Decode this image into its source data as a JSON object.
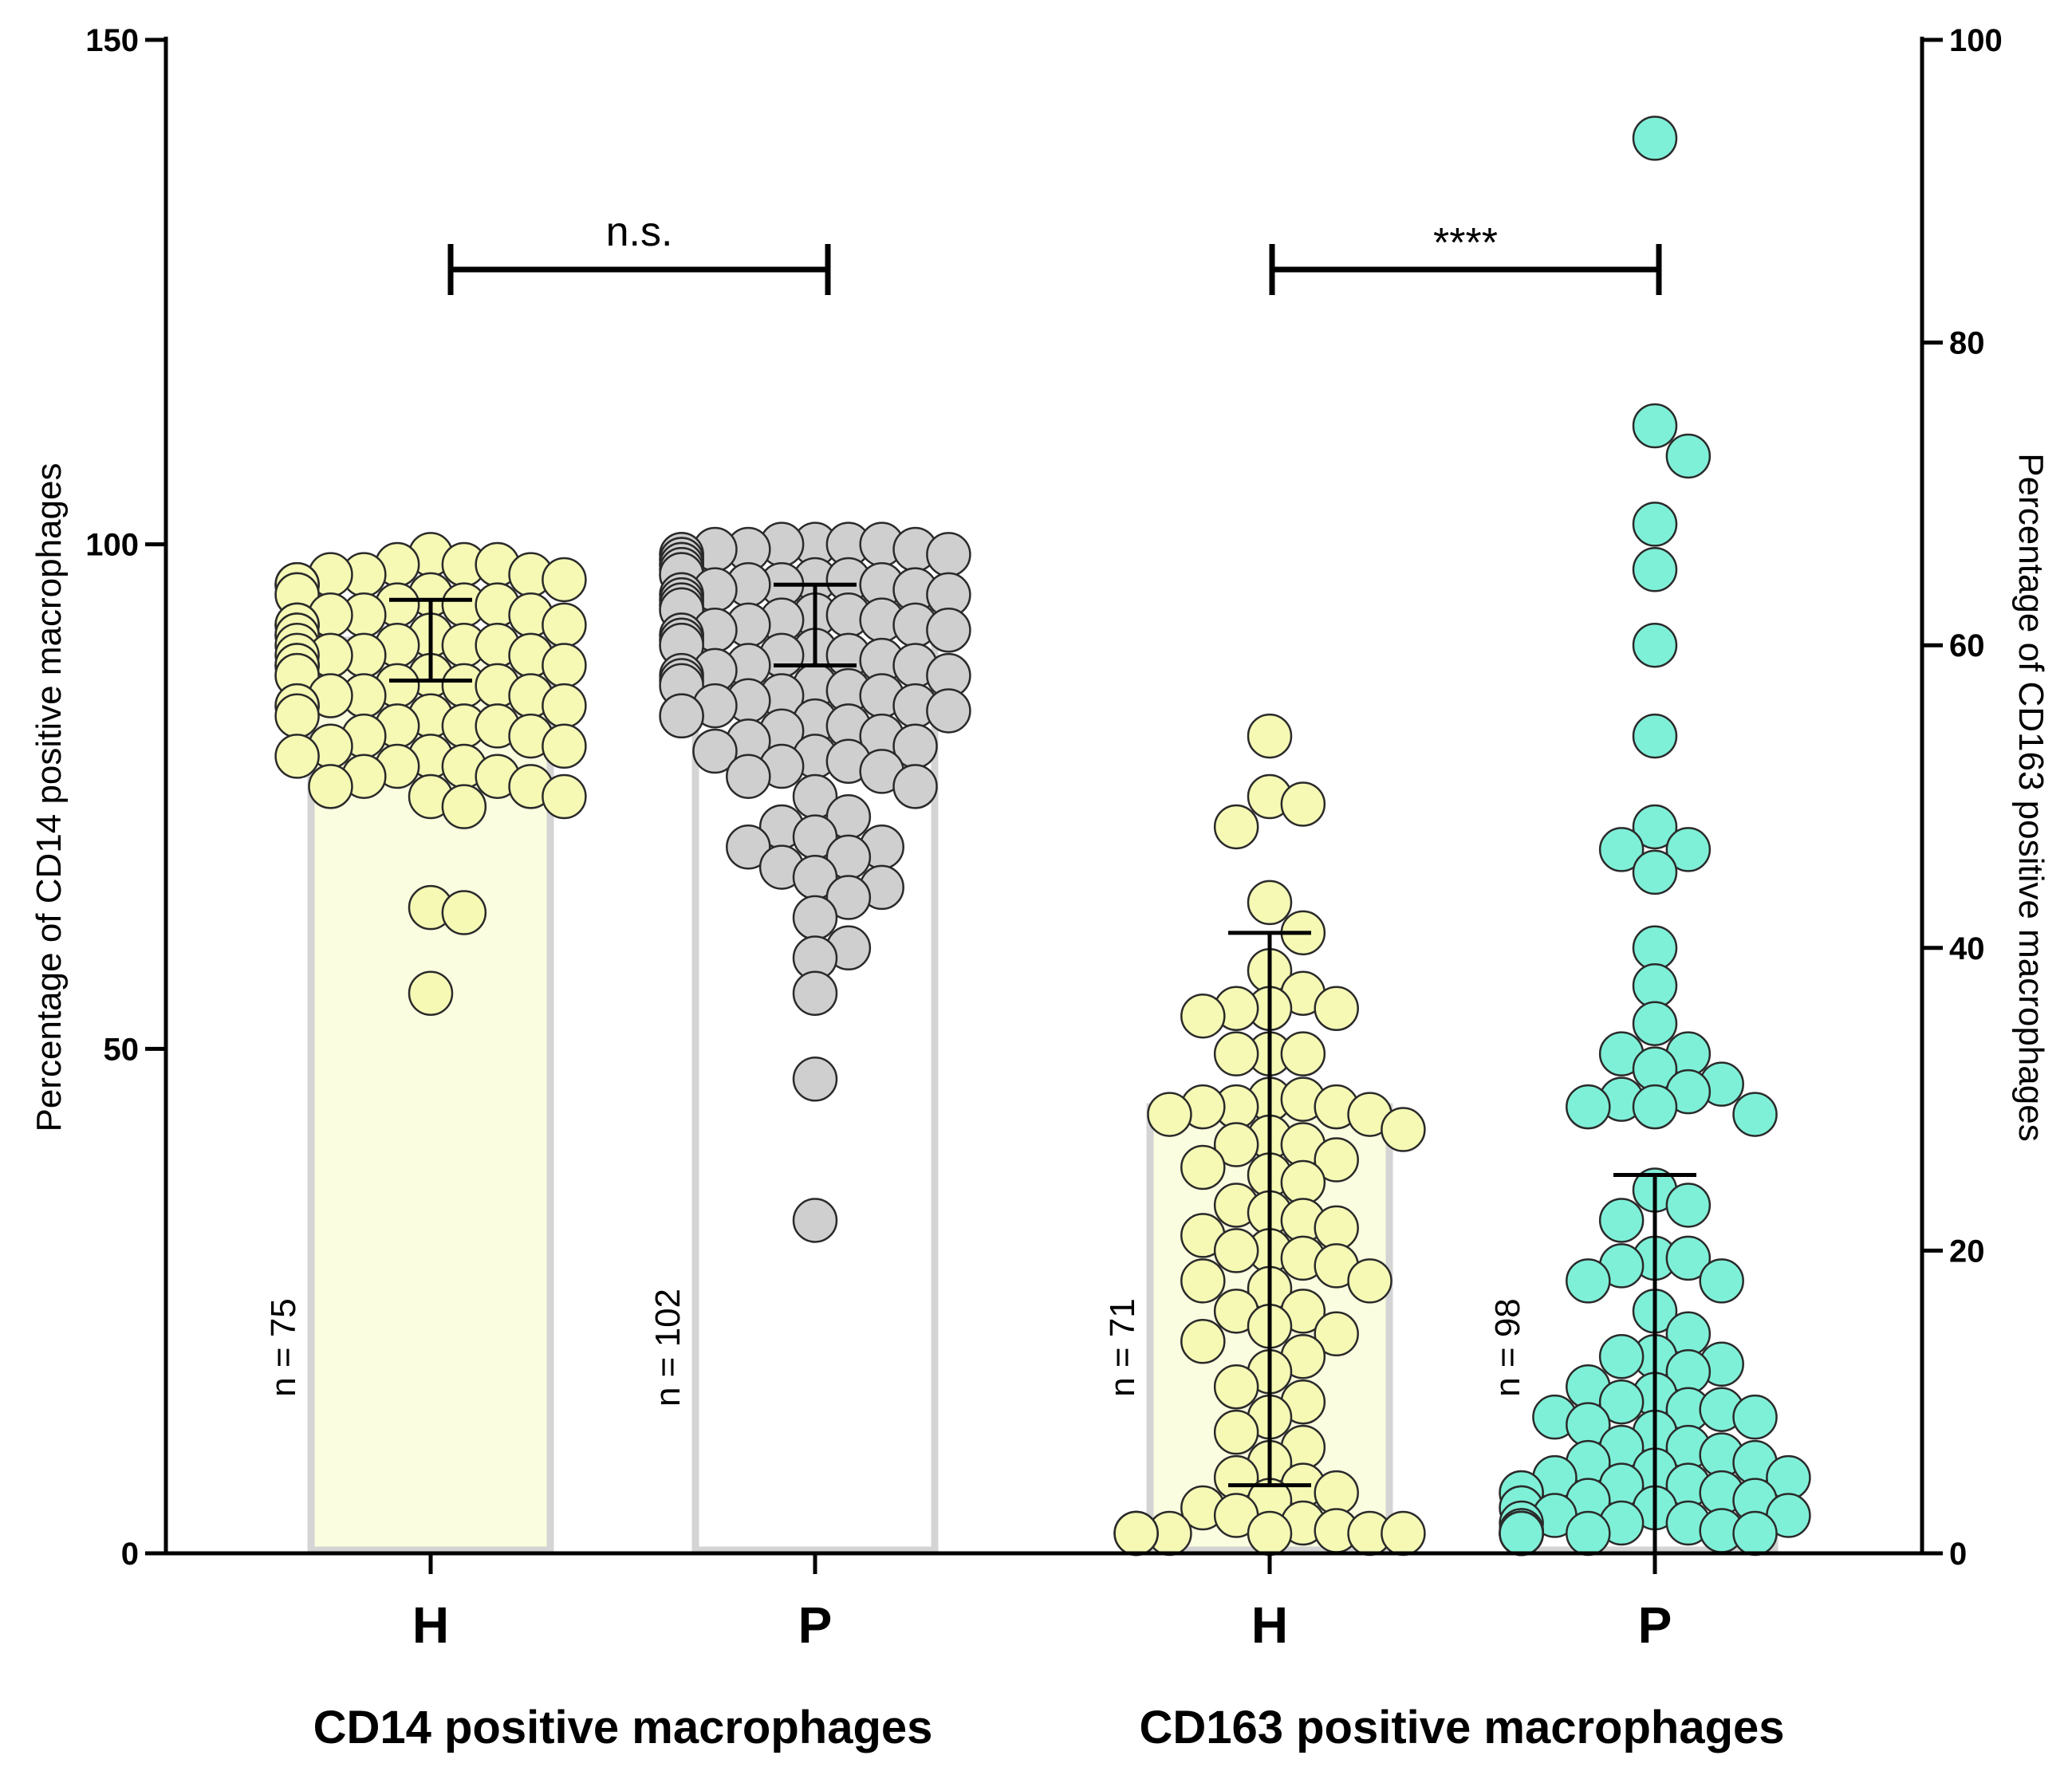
{
  "chart_data": {
    "type": "scatter",
    "left_axis": {
      "title": "Percentage of CD14 positive macrophages",
      "range": [
        0,
        150
      ],
      "ticks": [
        "0",
        "50",
        "100",
        "150"
      ]
    },
    "right_axis": {
      "title": "Percentage of CD163 positive macrophages",
      "range": [
        0,
        100
      ],
      "ticks": [
        "0",
        "20",
        "40",
        "60",
        "80",
        "100"
      ]
    },
    "groups": [
      {
        "label": "CD14 positive macrophages",
        "axis": "left",
        "comparison": "n.s."
      },
      {
        "label": "CD163 positive macrophages",
        "axis": "right",
        "comparison": "****"
      }
    ],
    "series": [
      {
        "category": "H",
        "group": 0,
        "n_label": "n = 75",
        "color": "#f5f9b4",
        "bar_value": 90.5,
        "error_low": 86.5,
        "error_high": 94.5,
        "values": [
          99,
          98,
          98,
          98,
          97,
          97,
          97,
          96,
          96,
          96,
          95,
          95,
          95,
          94,
          94,
          94,
          93,
          93,
          93,
          92,
          92,
          92,
          92,
          91,
          91,
          91,
          91,
          90,
          90,
          90,
          90,
          89,
          89,
          89,
          89,
          88,
          88,
          88,
          88,
          87,
          87,
          87,
          86,
          86,
          86,
          85,
          85,
          85,
          84,
          84,
          84,
          83,
          83,
          82,
          82,
          82,
          81,
          81,
          80,
          80,
          79,
          79,
          78,
          78,
          77,
          77,
          76,
          76,
          75,
          75,
          74,
          64,
          63.5,
          55.5,
          96.5
        ]
      },
      {
        "category": "P",
        "group": 0,
        "n_label": "n = 102",
        "color": "#cfcfcf",
        "bar_value": 92,
        "error_low": 88,
        "error_high": 96,
        "values": [
          100,
          100,
          100,
          100,
          99.5,
          99.5,
          99.5,
          99,
          99,
          99,
          98.5,
          98.5,
          98.5,
          98,
          98,
          98,
          97.5,
          97.5,
          97,
          97,
          97,
          96.5,
          96.5,
          96,
          96,
          96,
          95.5,
          95.5,
          95,
          95,
          95,
          94.5,
          94.5,
          94,
          94,
          93.5,
          93.5,
          93,
          93,
          92.5,
          92.5,
          92,
          92,
          91.5,
          91.5,
          91,
          91,
          90.5,
          90.5,
          90,
          90,
          89.5,
          89,
          89,
          88.5,
          88,
          88,
          87.5,
          87,
          87,
          86.5,
          86,
          86,
          85.5,
          85,
          85,
          84.5,
          84,
          84,
          83.5,
          83,
          83,
          82.5,
          82,
          81.5,
          81,
          80.5,
          80,
          79.5,
          79,
          78.5,
          78,
          77.5,
          77,
          76,
          75,
          73,
          72,
          71,
          70,
          70,
          69,
          68,
          67,
          66,
          65,
          63,
          60,
          59,
          55.5,
          47,
          33
        ]
      },
      {
        "category": "H",
        "group": 1,
        "n_label": "n = 71",
        "color": "#f5f9b4",
        "bar_value": 29.5,
        "error_low": 4.5,
        "error_high": 41,
        "values": [
          54,
          50,
          49.5,
          48,
          43,
          41,
          38.5,
          37,
          36,
          36,
          36,
          35.5,
          33,
          33,
          33,
          30,
          30,
          29.5,
          29.5,
          29.5,
          29,
          29,
          28,
          27.5,
          27,
          27,
          26,
          25.5,
          25,
          24.5,
          23,
          22.5,
          22,
          21.5,
          21,
          20,
          20,
          19.5,
          19,
          18,
          18,
          17.5,
          16,
          16,
          15,
          14.5,
          14,
          13,
          12,
          11,
          10,
          9,
          8,
          7,
          6,
          5,
          4.5,
          4,
          3.5,
          3,
          2.5,
          2,
          1.5,
          1,
          1,
          0.5,
          0.5,
          0.5,
          0,
          0,
          0
        ]
      },
      {
        "category": "P",
        "group": 1,
        "n_label": "n = 98",
        "color": "#7ff0d8",
        "bar_value": 5,
        "error_low": 0,
        "error_high": 25,
        "values": [
          93.5,
          74.5,
          72.5,
          68,
          65,
          60,
          54,
          48,
          46.5,
          46.5,
          45,
          40,
          37.5,
          35,
          33,
          33,
          32,
          31,
          30.5,
          30,
          29.5,
          29.5,
          29,
          24,
          23,
          22,
          19.5,
          19.5,
          19,
          18,
          18,
          16,
          14.5,
          13,
          13,
          12,
          12.5,
          11,
          10.5,
          10,
          9.5,
          9.5,
          9,
          9,
          8.5,
          8,
          7,
          7,
          6.5,
          6,
          6,
          5.5,
          5,
          5,
          4.5,
          4.5,
          4,
          4,
          4,
          3.5,
          3.5,
          3,
          3,
          3,
          2.5,
          2.5,
          2,
          2,
          2,
          1.5,
          1.5,
          1.5,
          1,
          1,
          1,
          1,
          0.5,
          0.5,
          0.5,
          0.5,
          0.5,
          0,
          0,
          0,
          0,
          0,
          0,
          0,
          0,
          0,
          0,
          0,
          0,
          0,
          0,
          0,
          0,
          0
        ]
      }
    ]
  }
}
